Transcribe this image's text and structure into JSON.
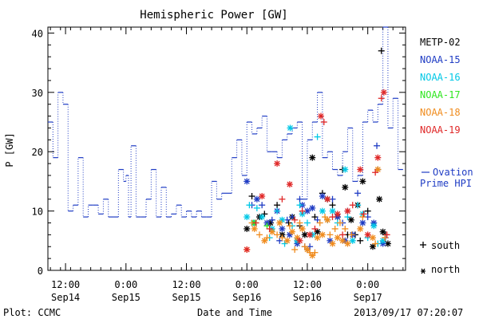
{
  "chart_data": {
    "type": "scatter",
    "title": "Hemispheric Power [GW]",
    "ylabel": "P [GW]",
    "xlabel": "Date and Time",
    "ylim": [
      0,
      41
    ],
    "xlim_hours": [
      -15.5,
      31.5
    ],
    "y_ticks": [
      0,
      10,
      20,
      30,
      40
    ],
    "x_ticks": [
      {
        "t": -12,
        "line1": "12:00",
        "line2": "Sep14"
      },
      {
        "t": 0,
        "line1": "0:00",
        "line2": "Sep15"
      },
      {
        "t": 12,
        "line1": "12:00",
        "line2": "Sep15"
      },
      {
        "t": 24,
        "line1": "0:00",
        "line2": "Sep16"
      },
      {
        "t": 36,
        "line1": "12:00",
        "line2": "Sep16"
      },
      {
        "t": 48,
        "line1": "0:00",
        "line2": "Sep17"
      }
    ],
    "series": [
      {
        "name": "METP-02",
        "color": "#000000",
        "symbol": "mixed",
        "points": [
          [
            24,
            7
          ],
          [
            25,
            12.5
          ],
          [
            26.5,
            9
          ],
          [
            27.5,
            9.5
          ],
          [
            28.7,
            8
          ],
          [
            30,
            11
          ],
          [
            31,
            6
          ],
          [
            32.3,
            8
          ],
          [
            33,
            9
          ],
          [
            34.5,
            7.5
          ],
          [
            35.5,
            6
          ],
          [
            36,
            3.5
          ],
          [
            37,
            19
          ],
          [
            37.5,
            9
          ],
          [
            38,
            6.5
          ],
          [
            39,
            13
          ],
          [
            40,
            12
          ],
          [
            41,
            11
          ],
          [
            42,
            9
          ],
          [
            43,
            17
          ],
          [
            43.5,
            14
          ],
          [
            44,
            6
          ],
          [
            44.7,
            8.5
          ],
          [
            45.5,
            6
          ],
          [
            46,
            11
          ],
          [
            46.5,
            5
          ],
          [
            47,
            15
          ],
          [
            48,
            10
          ],
          [
            49,
            4
          ],
          [
            50,
            17
          ],
          [
            50.3,
            12
          ],
          [
            50.7,
            37
          ],
          [
            51,
            6.5
          ],
          [
            51.5,
            6
          ],
          [
            52,
            4.5
          ]
        ]
      },
      {
        "name": "NOAA-15",
        "color": "#1f3cc4",
        "symbol": "mixed",
        "points": [
          [
            24,
            15
          ],
          [
            25,
            11
          ],
          [
            26,
            12
          ],
          [
            27,
            11
          ],
          [
            28,
            8
          ],
          [
            29,
            8.5
          ],
          [
            30,
            10
          ],
          [
            30.5,
            5
          ],
          [
            31,
            7
          ],
          [
            32,
            8.5
          ],
          [
            32.5,
            6
          ],
          [
            33,
            9
          ],
          [
            34,
            4.5
          ],
          [
            34.5,
            12
          ],
          [
            35,
            11
          ],
          [
            35.5,
            4
          ],
          [
            36,
            10
          ],
          [
            36.5,
            4
          ],
          [
            37,
            10.5
          ],
          [
            38,
            8.5
          ],
          [
            39,
            12.5
          ],
          [
            40,
            8.5
          ],
          [
            40.5,
            5
          ],
          [
            41,
            12
          ],
          [
            42,
            9
          ],
          [
            43,
            8
          ],
          [
            43.5,
            5
          ],
          [
            44,
            10
          ],
          [
            45,
            6
          ],
          [
            46,
            13
          ],
          [
            47,
            8
          ],
          [
            48,
            9
          ],
          [
            49.2,
            8
          ],
          [
            49.8,
            21
          ],
          [
            51,
            4.5
          ],
          [
            51.5,
            5.5
          ]
        ]
      },
      {
        "name": "NOAA-16",
        "color": "#00c8e6",
        "symbol": "mixed",
        "points": [
          [
            24,
            9
          ],
          [
            24.5,
            11
          ],
          [
            25.3,
            8
          ],
          [
            26,
            10.5
          ],
          [
            27,
            9
          ],
          [
            28.5,
            5.5
          ],
          [
            29,
            7
          ],
          [
            30,
            10
          ],
          [
            31,
            8.5
          ],
          [
            31.5,
            4.5
          ],
          [
            32.6,
            24
          ],
          [
            33,
            7.5
          ],
          [
            34,
            5
          ],
          [
            34.5,
            11
          ],
          [
            35,
            9.5
          ],
          [
            36,
            8
          ],
          [
            37,
            6
          ],
          [
            38,
            22.5
          ],
          [
            39,
            10
          ],
          [
            40,
            8.5
          ],
          [
            41,
            10
          ],
          [
            42,
            8
          ],
          [
            43.5,
            17
          ],
          [
            44,
            9
          ],
          [
            45,
            5
          ],
          [
            46,
            11
          ],
          [
            47,
            9.5
          ],
          [
            48,
            5.5
          ],
          [
            49.2,
            7.5
          ],
          [
            50,
            4.5
          ],
          [
            51,
            5
          ]
        ]
      },
      {
        "name": "NOAA-17",
        "color": "#2ee61e",
        "symbol": "mixed",
        "points": [
          [
            25.5,
            8
          ],
          [
            28,
            7.5
          ]
        ]
      },
      {
        "name": "NOAA-18",
        "color": "#f08c1e",
        "symbol": "mixed",
        "points": [
          [
            24,
            3.5
          ],
          [
            25,
            8
          ],
          [
            25.5,
            7
          ],
          [
            26.5,
            6
          ],
          [
            27.5,
            5
          ],
          [
            28,
            5.5
          ],
          [
            29,
            6.5
          ],
          [
            30,
            6
          ],
          [
            30.5,
            8
          ],
          [
            31,
            5.5
          ],
          [
            32,
            5
          ],
          [
            32.5,
            7.5
          ],
          [
            33,
            6.5
          ],
          [
            33.5,
            3.5
          ],
          [
            34,
            5.5
          ],
          [
            34.5,
            8
          ],
          [
            35,
            7
          ],
          [
            35.5,
            4
          ],
          [
            36,
            3.5
          ],
          [
            36.5,
            3
          ],
          [
            37,
            2.5
          ],
          [
            37.5,
            3
          ],
          [
            38,
            5.5
          ],
          [
            38.5,
            8
          ],
          [
            39,
            6
          ],
          [
            39.5,
            9
          ],
          [
            40,
            8.5
          ],
          [
            40.5,
            6
          ],
          [
            41,
            4.5
          ],
          [
            41.5,
            7
          ],
          [
            42,
            5.5
          ],
          [
            42.5,
            8
          ],
          [
            43,
            5
          ],
          [
            43.5,
            7
          ],
          [
            44,
            4.5
          ],
          [
            44.8,
            6
          ],
          [
            46.5,
            7
          ],
          [
            47,
            9
          ],
          [
            49,
            5.5
          ],
          [
            49.5,
            4.5
          ],
          [
            50,
            17
          ],
          [
            51.4,
            5.5
          ]
        ]
      },
      {
        "name": "NOAA-19",
        "color": "#e02828",
        "symbol": "mixed",
        "points": [
          [
            24,
            3.5
          ],
          [
            25.8,
            8
          ],
          [
            27,
            12.5
          ],
          [
            28.5,
            7
          ],
          [
            30,
            18
          ],
          [
            31,
            12
          ],
          [
            32.5,
            14.5
          ],
          [
            33.5,
            8.5
          ],
          [
            34.5,
            5
          ],
          [
            35,
            10
          ],
          [
            36.5,
            6
          ],
          [
            37.5,
            7
          ],
          [
            38.7,
            26
          ],
          [
            39.3,
            25
          ],
          [
            40,
            12
          ],
          [
            41,
            9
          ],
          [
            42,
            9.5
          ],
          [
            43,
            6
          ],
          [
            44,
            10
          ],
          [
            45,
            11
          ],
          [
            46.5,
            17
          ],
          [
            47.2,
            9.5
          ],
          [
            48,
            6
          ],
          [
            49.5,
            16.5
          ],
          [
            50,
            19
          ],
          [
            50.7,
            29
          ],
          [
            51.2,
            30
          ],
          [
            51.8,
            6
          ]
        ]
      }
    ],
    "ovation": {
      "name": "Ovation Prime HPI",
      "label_line1": "Ovation",
      "label_line2": "Prime HPI",
      "color": "#1f3cc4",
      "points": [
        [
          -15.5,
          25
        ],
        [
          -14.5,
          25
        ],
        [
          -14.5,
          19
        ],
        [
          -13.5,
          19
        ],
        [
          -13.5,
          30
        ],
        [
          -12.5,
          30
        ],
        [
          -12.5,
          28
        ],
        [
          -11.5,
          28
        ],
        [
          -11.5,
          10
        ],
        [
          -10.5,
          10
        ],
        [
          -10.5,
          11
        ],
        [
          -9.5,
          11
        ],
        [
          -9.5,
          19
        ],
        [
          -8.5,
          19
        ],
        [
          -8.5,
          9
        ],
        [
          -7.5,
          9
        ],
        [
          -7.5,
          11
        ],
        [
          -6.5,
          11
        ],
        [
          -6.5,
          11
        ],
        [
          -5.5,
          11
        ],
        [
          -5.5,
          9.5
        ],
        [
          -4.5,
          9.5
        ],
        [
          -4.5,
          12
        ],
        [
          -3.5,
          12
        ],
        [
          -3.5,
          9
        ],
        [
          -2.5,
          9
        ],
        [
          -2.5,
          9
        ],
        [
          -1.5,
          9
        ],
        [
          -1.5,
          17
        ],
        [
          -0.5,
          17
        ],
        [
          -0.5,
          15
        ],
        [
          0,
          15
        ],
        [
          0,
          16
        ],
        [
          0.5,
          16
        ],
        [
          0.5,
          9
        ],
        [
          1,
          9
        ],
        [
          1,
          21
        ],
        [
          2,
          21
        ],
        [
          2,
          9
        ],
        [
          3,
          9
        ],
        [
          3,
          9
        ],
        [
          4,
          9
        ],
        [
          4,
          12
        ],
        [
          5,
          12
        ],
        [
          5,
          17
        ],
        [
          6,
          17
        ],
        [
          6,
          9
        ],
        [
          7,
          9
        ],
        [
          7,
          14
        ],
        [
          8,
          14
        ],
        [
          8,
          9
        ],
        [
          9,
          9
        ],
        [
          9,
          9.5
        ],
        [
          10,
          9.5
        ],
        [
          10,
          11
        ],
        [
          11,
          11
        ],
        [
          11,
          9
        ],
        [
          12,
          9
        ],
        [
          12,
          10
        ],
        [
          13,
          10
        ],
        [
          13,
          9
        ],
        [
          14,
          9
        ],
        [
          14,
          10
        ],
        [
          15,
          10
        ],
        [
          15,
          9
        ],
        [
          16,
          9
        ],
        [
          16,
          9
        ],
        [
          17,
          9
        ],
        [
          17,
          15
        ],
        [
          18,
          15
        ],
        [
          18,
          12
        ],
        [
          19,
          12
        ],
        [
          19,
          13
        ],
        [
          20,
          13
        ],
        [
          20,
          13
        ],
        [
          21,
          13
        ],
        [
          21,
          19
        ],
        [
          22,
          19
        ],
        [
          22,
          22
        ],
        [
          23,
          22
        ],
        [
          23,
          16
        ],
        [
          24,
          16
        ],
        [
          24,
          25
        ],
        [
          25,
          25
        ],
        [
          25,
          23
        ],
        [
          26,
          23
        ],
        [
          26,
          24
        ],
        [
          27,
          24
        ],
        [
          27,
          26
        ],
        [
          28,
          26
        ],
        [
          28,
          20
        ],
        [
          29,
          20
        ],
        [
          29,
          20
        ],
        [
          30,
          20
        ],
        [
          30,
          19
        ],
        [
          31,
          19
        ],
        [
          31,
          22
        ],
        [
          32,
          22
        ],
        [
          32,
          23
        ],
        [
          33,
          23
        ],
        [
          33,
          24
        ],
        [
          34,
          24
        ],
        [
          34,
          25
        ],
        [
          35,
          25
        ],
        [
          35,
          12
        ],
        [
          36,
          12
        ],
        [
          36,
          22
        ],
        [
          37,
          22
        ],
        [
          37,
          25
        ],
        [
          38,
          25
        ],
        [
          38,
          30
        ],
        [
          39,
          30
        ],
        [
          39,
          19
        ],
        [
          40,
          19
        ],
        [
          40,
          20
        ],
        [
          41,
          20
        ],
        [
          41,
          17
        ],
        [
          42,
          17
        ],
        [
          42,
          16
        ],
        [
          43,
          16
        ],
        [
          43,
          20
        ],
        [
          44,
          20
        ],
        [
          44,
          24
        ],
        [
          45,
          24
        ],
        [
          45,
          15
        ],
        [
          46,
          15
        ],
        [
          46,
          16
        ],
        [
          47,
          16
        ],
        [
          47,
          25
        ],
        [
          48,
          25
        ],
        [
          48,
          27
        ],
        [
          49,
          27
        ],
        [
          49,
          25
        ],
        [
          50,
          25
        ],
        [
          50,
          28
        ],
        [
          51,
          28
        ],
        [
          51,
          41
        ],
        [
          52,
          41
        ],
        [
          52,
          24
        ],
        [
          53,
          24
        ],
        [
          53,
          29
        ],
        [
          54,
          29
        ],
        [
          54,
          17
        ],
        [
          55,
          17
        ]
      ]
    },
    "legend": [
      {
        "name": "METP-02",
        "color": "#000000"
      },
      {
        "name": "NOAA-15",
        "color": "#1f3cc4"
      },
      {
        "name": "NOAA-16",
        "color": "#00c8e6"
      },
      {
        "name": "NOAA-17",
        "color": "#2ee61e"
      },
      {
        "name": "NOAA-18",
        "color": "#f08c1e"
      },
      {
        "name": "NOAA-19",
        "color": "#e02828"
      }
    ],
    "symbol_key": [
      {
        "symbol": "+",
        "label": "south"
      },
      {
        "symbol": "*",
        "label": "north"
      }
    ],
    "grid": false,
    "legend_position": "right"
  },
  "footer": {
    "plot_credit": "Plot: CCMC",
    "timestamp": "2013/09/17 07:20:07"
  }
}
